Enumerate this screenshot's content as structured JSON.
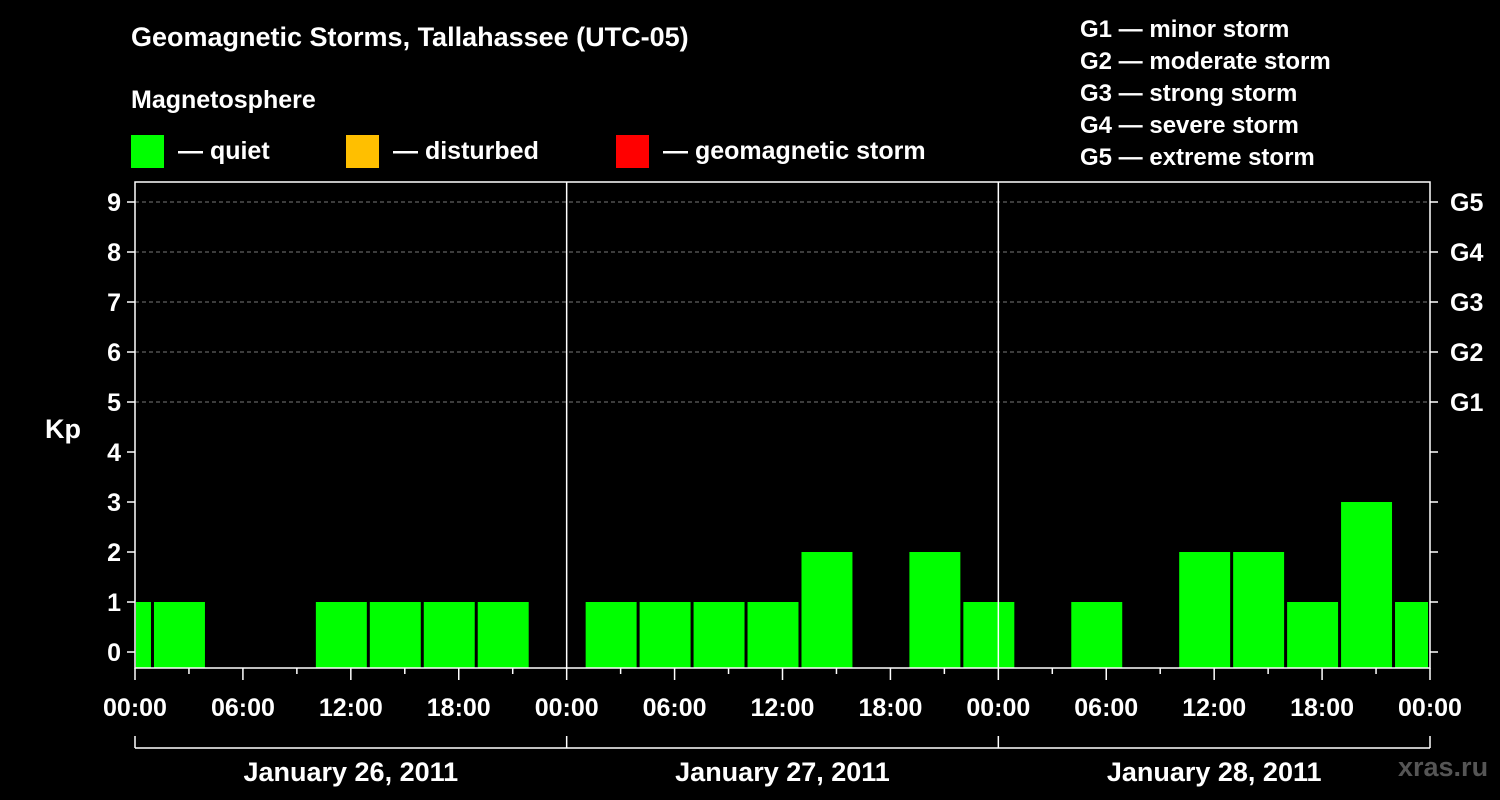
{
  "title": "Geomagnetic Storms, Tallahassee (UTC-05)",
  "subtitle": "Magnetosphere",
  "legend": [
    {
      "label": "— quiet",
      "color": "#00ff00"
    },
    {
      "label": "— disturbed",
      "color": "#ffbf00"
    },
    {
      "label": "— geomagnetic storm",
      "color": "#ff0000"
    }
  ],
  "storm_scale": [
    "G1 — minor storm",
    "G2 — moderate storm",
    "G3 — strong storm",
    "G4 — severe storm",
    "G5 — extreme storm"
  ],
  "watermark": "xras.ru",
  "chart_data": {
    "type": "bar",
    "ylabel": "Kp",
    "ylim": [
      0,
      9
    ],
    "y_ticks": [
      "0",
      "1",
      "2",
      "3",
      "4",
      "5",
      "6",
      "7",
      "8",
      "9"
    ],
    "right_ticks": [
      {
        "kp": 5,
        "label": "G1"
      },
      {
        "kp": 6,
        "label": "G2"
      },
      {
        "kp": 7,
        "label": "G3"
      },
      {
        "kp": 8,
        "label": "G4"
      },
      {
        "kp": 9,
        "label": "G5"
      }
    ],
    "x_ticks": [
      "00:00",
      "06:00",
      "12:00",
      "18:00",
      "00:00",
      "06:00",
      "12:00",
      "18:00",
      "00:00",
      "06:00",
      "12:00",
      "18:00",
      "00:00"
    ],
    "days": [
      "January 26, 2011",
      "January 27, 2011",
      "January 28, 2011"
    ],
    "grid": "dashed at Kp 5-9",
    "bars": [
      {
        "start_hour": 0,
        "end_hour": 1,
        "kp": 1
      },
      {
        "start_hour": 1,
        "end_hour": 4,
        "kp": 1
      },
      {
        "start_hour": 4,
        "end_hour": 7,
        "kp": 0
      },
      {
        "start_hour": 7,
        "end_hour": 10,
        "kp": 0
      },
      {
        "start_hour": 10,
        "end_hour": 13,
        "kp": 1
      },
      {
        "start_hour": 13,
        "end_hour": 16,
        "kp": 1
      },
      {
        "start_hour": 16,
        "end_hour": 19,
        "kp": 1
      },
      {
        "start_hour": 19,
        "end_hour": 22,
        "kp": 1
      },
      {
        "start_hour": 22,
        "end_hour": 25,
        "kp": 0
      },
      {
        "start_hour": 25,
        "end_hour": 28,
        "kp": 1
      },
      {
        "start_hour": 28,
        "end_hour": 31,
        "kp": 1
      },
      {
        "start_hour": 31,
        "end_hour": 34,
        "kp": 1
      },
      {
        "start_hour": 34,
        "end_hour": 37,
        "kp": 1
      },
      {
        "start_hour": 37,
        "end_hour": 40,
        "kp": 2
      },
      {
        "start_hour": 40,
        "end_hour": 43,
        "kp": 0
      },
      {
        "start_hour": 43,
        "end_hour": 46,
        "kp": 2
      },
      {
        "start_hour": 46,
        "end_hour": 49,
        "kp": 1
      },
      {
        "start_hour": 49,
        "end_hour": 52,
        "kp": 0
      },
      {
        "start_hour": 52,
        "end_hour": 55,
        "kp": 1
      },
      {
        "start_hour": 55,
        "end_hour": 58,
        "kp": 0
      },
      {
        "start_hour": 58,
        "end_hour": 61,
        "kp": 2
      },
      {
        "start_hour": 61,
        "end_hour": 64,
        "kp": 2
      },
      {
        "start_hour": 64,
        "end_hour": 67,
        "kp": 1
      },
      {
        "start_hour": 67,
        "end_hour": 70,
        "kp": 3
      },
      {
        "start_hour": 70,
        "end_hour": 72,
        "kp": 1
      }
    ]
  }
}
